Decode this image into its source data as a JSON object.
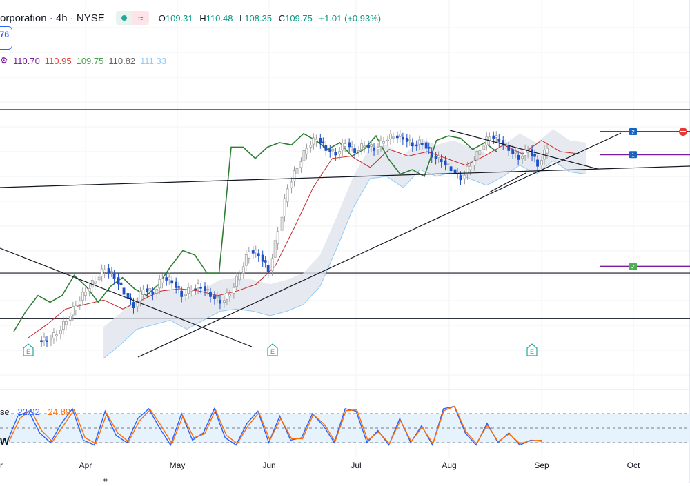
{
  "header": {
    "title": "orporation · 4h · NYSE",
    "ohlc": {
      "o_label": "O",
      "o": "109.31",
      "h_label": "H",
      "h": "110.48",
      "l_label": "L",
      "l": "108.35",
      "c_label": "C",
      "c": "109.75",
      "change": "+1.01 (+0.93%)"
    },
    "badge": "76"
  },
  "ichimoku": {
    "icon": "settings-icon",
    "values": [
      "110.70",
      "110.95",
      "109.75",
      "110.82",
      "111.33"
    ],
    "colors": [
      "#7b1fa2",
      "#e53935",
      "#43a047",
      "#616161",
      "#90caf9"
    ]
  },
  "stochastic": {
    "label": "se",
    "k": "22.92",
    "d": "24.89",
    "k_color": "#2962ff",
    "d_color": "#ff6d00"
  },
  "w_label": "W",
  "x_axis": {
    "months": [
      "r",
      "Apr",
      "May",
      "Jun",
      "Jul",
      "Aug",
      "Sep",
      "Oct"
    ]
  },
  "markers": {
    "earnings": [
      "E",
      "E",
      "E"
    ],
    "order_levels": [
      "2",
      "1",
      "✓"
    ]
  },
  "colors": {
    "up": "#9e9e9e",
    "down": "#1e50c8",
    "conversion": "#2e7d32",
    "base": "#c62828",
    "span_b": "#90caf9",
    "cloud": "#e0e3eb",
    "levels": "#7b1fa2",
    "band": "#e3f2fd"
  },
  "chart_data": {
    "type": "candlestick",
    "price_range": [
      100.4,
      111.9
    ],
    "stoch_range": [
      0,
      100
    ],
    "stoch_bands": [
      80,
      50,
      20
    ],
    "horizontal_levels": [
      111.47,
      104.2,
      102.17
    ],
    "order_levels": [
      {
        "label": "2",
        "price": 110.49
      },
      {
        "label": "1",
        "price": 109.47
      },
      {
        "label": "✓",
        "price": 104.49
      }
    ],
    "close_series": [
      101.2,
      101.5,
      102.1,
      102.8,
      103.4,
      103.9,
      104.4,
      104.0,
      103.3,
      102.7,
      103.5,
      103.3,
      104.0,
      103.8,
      103.2,
      103.5,
      103.6,
      103.2,
      102.9,
      103.3,
      104.2,
      105.2,
      105.0,
      104.3,
      106.1,
      108.0,
      108.9,
      109.8,
      110.2,
      109.7,
      109.5,
      110.0,
      109.6,
      109.9,
      109.7,
      110.1,
      110.3,
      110.2,
      109.9,
      110.0,
      109.4,
      109.2,
      108.8,
      108.4,
      109.0,
      109.7,
      110.3,
      110.1,
      109.7,
      109.3,
      109.7,
      109.0,
      109.8
    ],
    "conversion_line": [
      101.6,
      102.5,
      103.2,
      102.9,
      103.2,
      104.1,
      103.6,
      102.9,
      103.6,
      104.0,
      103.5,
      103.2,
      103.7,
      104.5,
      105.2,
      105.0,
      104.2,
      104.2,
      109.8,
      109.8,
      109.3,
      109.8,
      110.0,
      109.9,
      110.4,
      110.1,
      109.7,
      110.0,
      109.4,
      109.7,
      110.3,
      109.3,
      108.6,
      108.8,
      108.5,
      110.1,
      110.3,
      110.2,
      109.7,
      110.0,
      109.6
    ],
    "base_line": [
      101.3,
      101.9,
      102.6,
      102.8,
      103.0,
      102.6,
      103.0,
      103.4,
      103.5,
      103.4,
      103.2,
      103.4,
      103.7,
      104.5,
      106.2,
      108.0,
      109.3,
      109.4,
      108.9,
      109.7,
      109.4,
      109.6,
      109.3,
      109.0,
      109.4,
      109.9,
      109.5,
      110.1,
      109.6,
      109.5
    ],
    "stoch_k": [
      20,
      75,
      85,
      40,
      20,
      60,
      90,
      25,
      15,
      85,
      35,
      20,
      70,
      90,
      50,
      15,
      80,
      25,
      40,
      90,
      30,
      15,
      60,
      85,
      20,
      75,
      25,
      30,
      80,
      55,
      20,
      90,
      85,
      20,
      45,
      15,
      70,
      20,
      55,
      15,
      90,
      95,
      40,
      15,
      60,
      20,
      40,
      15,
      25,
      22.92
    ],
    "stoch_d": [
      22,
      70,
      88,
      45,
      22,
      55,
      88,
      30,
      18,
      80,
      40,
      22,
      65,
      88,
      55,
      18,
      75,
      30,
      38,
      88,
      35,
      18,
      55,
      82,
      25,
      70,
      28,
      28,
      78,
      58,
      22,
      86,
      88,
      25,
      42,
      18,
      66,
      22,
      52,
      18,
      86,
      95,
      44,
      18,
      56,
      22,
      38,
      18,
      24,
      24.89
    ]
  }
}
